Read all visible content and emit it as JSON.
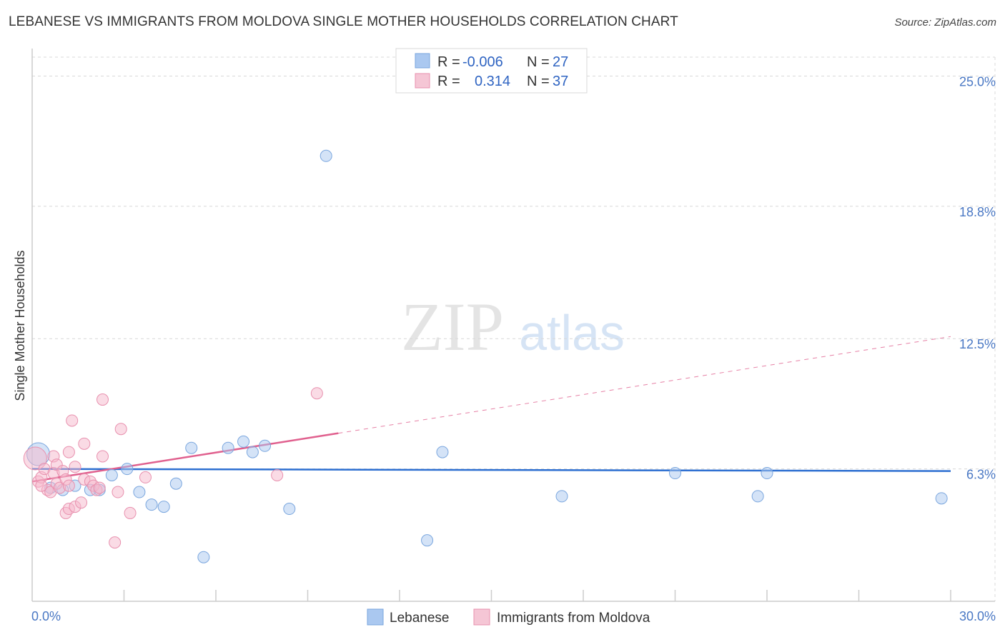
{
  "title": "LEBANESE VS IMMIGRANTS FROM MOLDOVA SINGLE MOTHER HOUSEHOLDS CORRELATION CHART",
  "source": "Source: ZipAtlas.com",
  "watermark": {
    "zip": "ZIP",
    "atlas": "atlas"
  },
  "colors": {
    "blue_fill": "#aac8f0",
    "blue_stroke": "#7aa6de",
    "blue_line": "#2d6fd1",
    "pink_fill": "#f5b8cc",
    "pink_stroke": "#e890ae",
    "pink_line": "#e0608e",
    "axis_text": "#4a78c4",
    "grid": "#d8d8d8"
  },
  "legend": {
    "rows": [
      {
        "r_label": "R =",
        "r_value": "-0.006",
        "n_label": "N =",
        "n_value": "27",
        "series": "blue"
      },
      {
        "r_label": "R =",
        "r_value": "0.314",
        "n_label": "N =",
        "n_value": "37",
        "series": "pink"
      }
    ]
  },
  "bottom_legend": [
    {
      "label": "Lebanese",
      "series": "blue"
    },
    {
      "label": "Immigrants from Moldova",
      "series": "pink"
    }
  ],
  "chart_data": {
    "type": "scatter",
    "title": "LEBANESE VS IMMIGRANTS FROM MOLDOVA SINGLE MOTHER HOUSEHOLDS CORRELATION CHART",
    "xlabel": "",
    "ylabel": "Single Mother Households",
    "xlim": [
      0,
      30
    ],
    "ylim": [
      0,
      25.9
    ],
    "x_tick_labels": [
      {
        "value": 0,
        "label": "0.0%"
      },
      {
        "value": 30,
        "label": "30.0%"
      }
    ],
    "y_tick_labels": [
      {
        "value": 25.0,
        "label": "25.0%"
      },
      {
        "value": 18.8,
        "label": "18.8%"
      },
      {
        "value": 12.5,
        "label": "12.5%"
      },
      {
        "value": 6.3,
        "label": "6.3%"
      }
    ],
    "x_minor_ticks": [
      3,
      6,
      9,
      12,
      15,
      18,
      21,
      24,
      27,
      30
    ],
    "grid": true,
    "legend_position": "top-center",
    "series": [
      {
        "name": "Lebanese",
        "color": "blue",
        "R": -0.006,
        "N": 27,
        "trend": {
          "x": [
            0,
            30
          ],
          "y": [
            6.3,
            6.2
          ],
          "dashed_after": null
        },
        "points": [
          {
            "x": 0.2,
            "y": 7.0,
            "big": true
          },
          {
            "x": 0.6,
            "y": 5.4
          },
          {
            "x": 1.0,
            "y": 5.3
          },
          {
            "x": 1.4,
            "y": 5.5
          },
          {
            "x": 1.9,
            "y": 5.3
          },
          {
            "x": 2.2,
            "y": 5.3
          },
          {
            "x": 2.6,
            "y": 6.0
          },
          {
            "x": 3.1,
            "y": 6.3
          },
          {
            "x": 3.5,
            "y": 5.2
          },
          {
            "x": 3.9,
            "y": 4.6
          },
          {
            "x": 4.3,
            "y": 4.5
          },
          {
            "x": 4.7,
            "y": 5.6
          },
          {
            "x": 5.2,
            "y": 7.3
          },
          {
            "x": 5.6,
            "y": 2.1
          },
          {
            "x": 6.4,
            "y": 7.3
          },
          {
            "x": 6.9,
            "y": 7.6
          },
          {
            "x": 7.2,
            "y": 7.1
          },
          {
            "x": 7.6,
            "y": 7.4
          },
          {
            "x": 8.4,
            "y": 4.4
          },
          {
            "x": 9.6,
            "y": 21.2
          },
          {
            "x": 12.9,
            "y": 2.9
          },
          {
            "x": 13.4,
            "y": 7.1
          },
          {
            "x": 17.3,
            "y": 5.0
          },
          {
            "x": 21.0,
            "y": 6.1
          },
          {
            "x": 23.7,
            "y": 5.0
          },
          {
            "x": 24.0,
            "y": 6.1
          },
          {
            "x": 29.7,
            "y": 4.9
          }
        ]
      },
      {
        "name": "Immigrants from Moldova",
        "color": "pink",
        "R": 0.314,
        "N": 37,
        "trend": {
          "x": [
            0,
            30
          ],
          "y": [
            5.7,
            12.6
          ],
          "solid_until_x": 10.0
        },
        "points": [
          {
            "x": 0.1,
            "y": 6.8,
            "big": true
          },
          {
            "x": 0.2,
            "y": 5.7
          },
          {
            "x": 0.3,
            "y": 5.9
          },
          {
            "x": 0.4,
            "y": 6.3
          },
          {
            "x": 0.5,
            "y": 5.3
          },
          {
            "x": 0.6,
            "y": 5.2
          },
          {
            "x": 0.7,
            "y": 6.1
          },
          {
            "x": 0.8,
            "y": 5.6
          },
          {
            "x": 0.9,
            "y": 5.4
          },
          {
            "x": 0.7,
            "y": 6.9
          },
          {
            "x": 0.8,
            "y": 6.5
          },
          {
            "x": 1.0,
            "y": 6.2
          },
          {
            "x": 1.1,
            "y": 5.8
          },
          {
            "x": 1.2,
            "y": 5.5
          },
          {
            "x": 1.1,
            "y": 4.2
          },
          {
            "x": 1.2,
            "y": 4.4
          },
          {
            "x": 1.2,
            "y": 7.1
          },
          {
            "x": 1.3,
            "y": 8.6
          },
          {
            "x": 1.4,
            "y": 6.4
          },
          {
            "x": 1.4,
            "y": 4.5
          },
          {
            "x": 1.6,
            "y": 4.7
          },
          {
            "x": 1.7,
            "y": 5.8
          },
          {
            "x": 1.7,
            "y": 7.5
          },
          {
            "x": 1.9,
            "y": 5.7
          },
          {
            "x": 2.0,
            "y": 5.5
          },
          {
            "x": 2.1,
            "y": 5.3
          },
          {
            "x": 2.2,
            "y": 5.4
          },
          {
            "x": 2.3,
            "y": 9.6
          },
          {
            "x": 2.3,
            "y": 6.9
          },
          {
            "x": 2.7,
            "y": 2.8
          },
          {
            "x": 2.8,
            "y": 5.2
          },
          {
            "x": 2.9,
            "y": 8.2
          },
          {
            "x": 3.2,
            "y": 4.2
          },
          {
            "x": 3.7,
            "y": 5.9
          },
          {
            "x": 8.0,
            "y": 6.0
          },
          {
            "x": 9.3,
            "y": 9.9
          },
          {
            "x": 0.3,
            "y": 5.5
          }
        ]
      }
    ]
  }
}
